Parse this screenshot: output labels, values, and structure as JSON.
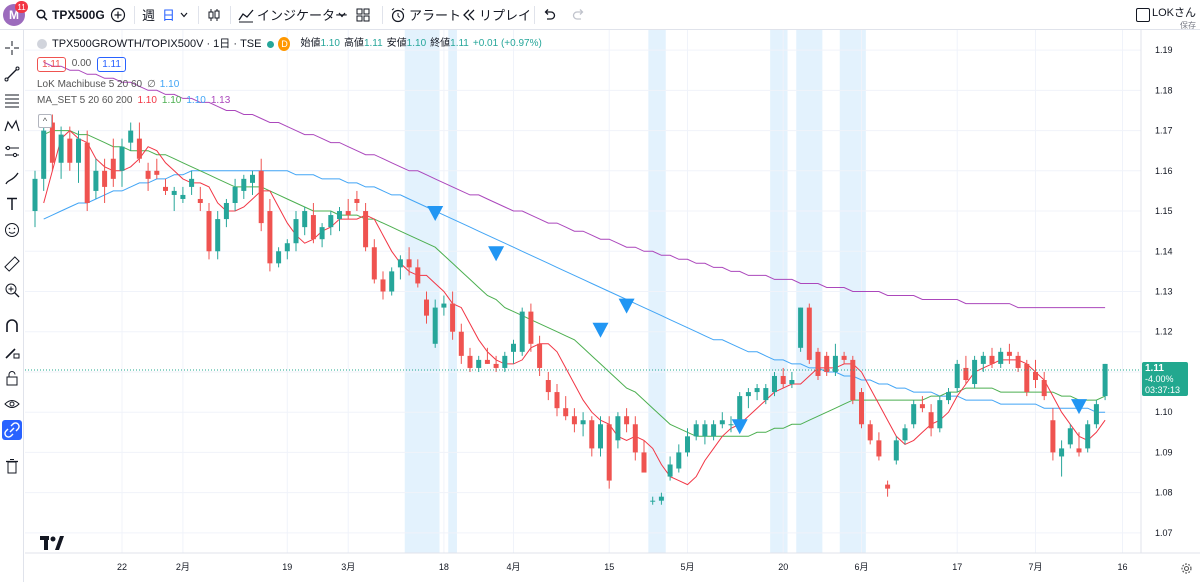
{
  "header": {
    "avatar_letter": "M",
    "avatar_badge": "11",
    "symbol": "TPX500G",
    "interval_week": "週",
    "interval_day": "日",
    "indicators_label": "インジケーター",
    "alert_label": "アラート",
    "replay_label": "リプレイ",
    "user_name": "LOKさん",
    "user_saved": "保存"
  },
  "legend": {
    "instrument": "TPX500GROWTH/TOPIX500V · 1日 · TSE",
    "badge_d": "D",
    "open_label": "始値",
    "open": "1.10",
    "high_label": "高値",
    "high": "1.11",
    "low_label": "安値",
    "low": "1.10",
    "close_label": "終値",
    "close": "1.11",
    "change": "+0.01 (+0.97%)",
    "bid": "1.11",
    "spread": "0.00",
    "ask": "1.11",
    "indicator1_name": "LoK Machibuse 5 20 60",
    "indicator1_sym": "∅",
    "indicator1_val": "1.10",
    "indicator2_name": "MA_SET 5 20 60 200",
    "indicator2_vals": [
      "1.10",
      "1.10",
      "1.10",
      "1.13"
    ],
    "collapse": "^"
  },
  "price_axis": {
    "ticks": [
      "1.19",
      "1.18",
      "1.17",
      "1.16",
      "1.15",
      "1.14",
      "1.13",
      "1.12",
      "1.11",
      "1.10",
      "1.09",
      "1.08",
      "1.07"
    ]
  },
  "time_axis": {
    "ticks": [
      "22",
      "2月",
      "19",
      "3月",
      "18",
      "4月",
      "15",
      "5月",
      "20",
      "6月",
      "17",
      "7月",
      "16"
    ]
  },
  "last_price": {
    "price": "1.11",
    "change": "-4.00%",
    "countdown": "03:37:13"
  },
  "colors": {
    "up": "#26a69a",
    "down": "#ef5350",
    "ma5": "#f23645",
    "ma20": "#4caf50",
    "ma60": "#42a5f5",
    "ma200": "#ab47bc",
    "highlight": "#e3f2fd",
    "signal": "#2196f3"
  },
  "chart_data": {
    "type": "candlestick",
    "y_range": [
      1.065,
      1.195
    ],
    "candles": [
      [
        1.15,
        1.16,
        1.146,
        1.158
      ],
      [
        1.158,
        1.172,
        1.155,
        1.17
      ],
      [
        1.172,
        1.174,
        1.16,
        1.162
      ],
      [
        1.162,
        1.171,
        1.158,
        1.169
      ],
      [
        1.168,
        1.171,
        1.16,
        1.162
      ],
      [
        1.162,
        1.17,
        1.157,
        1.168
      ],
      [
        1.167,
        1.17,
        1.15,
        1.152
      ],
      [
        1.155,
        1.163,
        1.153,
        1.16
      ],
      [
        1.16,
        1.163,
        1.152,
        1.156
      ],
      [
        1.163,
        1.168,
        1.156,
        1.158
      ],
      [
        1.16,
        1.168,
        1.156,
        1.166
      ],
      [
        1.167,
        1.172,
        1.165,
        1.17
      ],
      [
        1.168,
        1.172,
        1.162,
        1.163
      ],
      [
        1.16,
        1.162,
        1.155,
        1.158
      ],
      [
        1.16,
        1.163,
        1.158,
        1.159
      ],
      [
        1.156,
        1.158,
        1.154,
        1.155
      ],
      [
        1.154,
        1.156,
        1.15,
        1.155
      ],
      [
        1.153,
        1.156,
        1.152,
        1.154
      ],
      [
        1.156,
        1.16,
        1.154,
        1.158
      ],
      [
        1.153,
        1.156,
        1.15,
        1.152
      ],
      [
        1.15,
        1.152,
        1.138,
        1.14
      ],
      [
        1.14,
        1.15,
        1.138,
        1.148
      ],
      [
        1.148,
        1.153,
        1.146,
        1.152
      ],
      [
        1.152,
        1.158,
        1.15,
        1.156
      ],
      [
        1.155,
        1.159,
        1.153,
        1.158
      ],
      [
        1.157,
        1.16,
        1.154,
        1.159
      ],
      [
        1.16,
        1.163,
        1.145,
        1.147
      ],
      [
        1.15,
        1.153,
        1.135,
        1.137
      ],
      [
        1.137,
        1.141,
        1.136,
        1.14
      ],
      [
        1.14,
        1.143,
        1.138,
        1.142
      ],
      [
        1.142,
        1.15,
        1.14,
        1.148
      ],
      [
        1.146,
        1.151,
        1.144,
        1.15
      ],
      [
        1.149,
        1.152,
        1.142,
        1.143
      ],
      [
        1.143,
        1.147,
        1.141,
        1.146
      ],
      [
        1.146,
        1.15,
        1.144,
        1.149
      ],
      [
        1.148,
        1.151,
        1.145,
        1.15
      ],
      [
        1.15,
        1.153,
        1.148,
        1.149
      ],
      [
        1.153,
        1.155,
        1.15,
        1.152
      ],
      [
        1.15,
        1.152,
        1.14,
        1.141
      ],
      [
        1.141,
        1.143,
        1.132,
        1.133
      ],
      [
        1.133,
        1.135,
        1.128,
        1.13
      ],
      [
        1.13,
        1.136,
        1.129,
        1.135
      ],
      [
        1.136,
        1.139,
        1.133,
        1.138
      ],
      [
        1.138,
        1.141,
        1.134,
        1.136
      ],
      [
        1.136,
        1.138,
        1.131,
        1.132
      ],
      [
        1.128,
        1.13,
        1.122,
        1.124
      ],
      [
        1.117,
        1.128,
        1.116,
        1.126
      ],
      [
        1.126,
        1.129,
        1.124,
        1.127
      ],
      [
        1.127,
        1.13,
        1.118,
        1.12
      ],
      [
        1.12,
        1.122,
        1.112,
        1.114
      ],
      [
        1.114,
        1.116,
        1.11,
        1.111
      ],
      [
        1.111,
        1.114,
        1.11,
        1.113
      ],
      [
        1.113,
        1.116,
        1.112,
        1.112
      ],
      [
        1.112,
        1.114,
        1.11,
        1.111
      ],
      [
        1.111,
        1.115,
        1.11,
        1.114
      ],
      [
        1.115,
        1.118,
        1.112,
        1.117
      ],
      [
        1.115,
        1.126,
        1.114,
        1.125
      ],
      [
        1.125,
        1.127,
        1.115,
        1.117
      ],
      [
        1.117,
        1.119,
        1.109,
        1.111
      ],
      [
        1.108,
        1.11,
        1.103,
        1.105
      ],
      [
        1.105,
        1.107,
        1.099,
        1.101
      ],
      [
        1.101,
        1.104,
        1.098,
        1.099
      ],
      [
        1.099,
        1.101,
        1.095,
        1.097
      ],
      [
        1.097,
        1.1,
        1.094,
        1.098
      ],
      [
        1.098,
        1.099,
        1.089,
        1.091
      ],
      [
        1.091,
        1.099,
        1.089,
        1.097
      ],
      [
        1.097,
        1.099,
        1.081,
        1.083
      ],
      [
        1.093,
        1.1,
        1.091,
        1.099
      ],
      [
        1.099,
        1.101,
        1.095,
        1.097
      ],
      [
        1.097,
        1.099,
        1.088,
        1.09
      ],
      [
        1.09,
        1.093,
        1.085,
        1.085
      ],
      [
        1.078,
        1.079,
        1.077,
        1.078
      ],
      [
        1.078,
        1.08,
        1.077,
        1.079
      ],
      [
        1.084,
        1.089,
        1.083,
        1.087
      ],
      [
        1.086,
        1.092,
        1.085,
        1.09
      ],
      [
        1.09,
        1.096,
        1.089,
        1.094
      ],
      [
        1.094,
        1.098,
        1.093,
        1.097
      ],
      [
        1.094,
        1.098,
        1.092,
        1.097
      ],
      [
        1.094,
        1.098,
        1.093,
        1.097
      ],
      [
        1.097,
        1.1,
        1.096,
        1.098
      ],
      [
        1.097,
        1.099,
        1.095,
        1.097
      ],
      [
        1.098,
        1.105,
        1.097,
        1.104
      ],
      [
        1.104,
        1.106,
        1.101,
        1.105
      ],
      [
        1.105,
        1.107,
        1.103,
        1.106
      ],
      [
        1.103,
        1.107,
        1.102,
        1.106
      ],
      [
        1.105,
        1.11,
        1.104,
        1.109
      ],
      [
        1.109,
        1.111,
        1.106,
        1.107
      ],
      [
        1.107,
        1.11,
        1.106,
        1.108
      ],
      [
        1.116,
        1.126,
        1.115,
        1.126
      ],
      [
        1.126,
        1.127,
        1.112,
        1.113
      ],
      [
        1.115,
        1.116,
        1.108,
        1.109
      ],
      [
        1.114,
        1.115,
        1.109,
        1.11
      ],
      [
        1.11,
        1.117,
        1.109,
        1.114
      ],
      [
        1.114,
        1.115,
        1.112,
        1.113
      ],
      [
        1.113,
        1.114,
        1.102,
        1.103
      ],
      [
        1.105,
        1.106,
        1.096,
        1.097
      ],
      [
        1.097,
        1.098,
        1.092,
        1.093
      ],
      [
        1.093,
        1.095,
        1.088,
        1.089
      ],
      [
        1.082,
        1.083,
        1.079,
        1.081
      ],
      [
        1.088,
        1.094,
        1.087,
        1.093
      ],
      [
        1.093,
        1.097,
        1.092,
        1.096
      ],
      [
        1.097,
        1.103,
        1.096,
        1.102
      ],
      [
        1.102,
        1.104,
        1.1,
        1.101
      ],
      [
        1.1,
        1.102,
        1.094,
        1.096
      ],
      [
        1.096,
        1.104,
        1.095,
        1.103
      ],
      [
        1.103,
        1.106,
        1.102,
        1.105
      ],
      [
        1.106,
        1.113,
        1.105,
        1.112
      ],
      [
        1.111,
        1.114,
        1.107,
        1.108
      ],
      [
        1.107,
        1.114,
        1.106,
        1.113
      ],
      [
        1.112,
        1.115,
        1.11,
        1.114
      ],
      [
        1.114,
        1.116,
        1.111,
        1.112
      ],
      [
        1.112,
        1.116,
        1.111,
        1.115
      ],
      [
        1.115,
        1.117,
        1.112,
        1.114
      ],
      [
        1.114,
        1.115,
        1.11,
        1.111
      ],
      [
        1.112,
        1.113,
        1.104,
        1.105
      ],
      [
        1.11,
        1.113,
        1.106,
        1.108
      ],
      [
        1.108,
        1.11,
        1.103,
        1.104
      ],
      [
        1.098,
        1.101,
        1.088,
        1.09
      ],
      [
        1.089,
        1.093,
        1.084,
        1.091
      ],
      [
        1.092,
        1.097,
        1.091,
        1.096
      ],
      [
        1.091,
        1.095,
        1.089,
        1.09
      ],
      [
        1.091,
        1.098,
        1.09,
        1.097
      ],
      [
        1.097,
        1.103,
        1.096,
        1.102
      ],
      [
        1.104,
        1.112,
        1.103,
        1.112
      ]
    ],
    "ma5": [
      1.152,
      1.16,
      1.168,
      1.17,
      1.168,
      1.167,
      1.163,
      1.161,
      1.16,
      1.16,
      1.161,
      1.163,
      1.166,
      1.165,
      1.162,
      1.16,
      1.158,
      1.157,
      1.157,
      1.156,
      1.152,
      1.15,
      1.15,
      1.151,
      1.153,
      1.155,
      1.155,
      1.151,
      1.147,
      1.144,
      1.142,
      1.143,
      1.145,
      1.146,
      1.148,
      1.148,
      1.148,
      1.149,
      1.148,
      1.144,
      1.14,
      1.137,
      1.135,
      1.134,
      1.134,
      1.132,
      1.13,
      1.127,
      1.126,
      1.122,
      1.118,
      1.115,
      1.113,
      1.112,
      1.112,
      1.113,
      1.116,
      1.117,
      1.117,
      1.115,
      1.111,
      1.107,
      1.103,
      1.1,
      1.098,
      1.097,
      1.094,
      1.093,
      1.094,
      1.093,
      1.091,
      1.087,
      1.084,
      1.083,
      1.082,
      1.084,
      1.088,
      1.091,
      1.094,
      1.096,
      1.097,
      1.099,
      1.101,
      1.103,
      1.105,
      1.106,
      1.107,
      1.107,
      1.109,
      1.111,
      1.111,
      1.111,
      1.112,
      1.112,
      1.11,
      1.106,
      1.102,
      1.098,
      1.094,
      1.092,
      1.093,
      1.095,
      1.097,
      1.098,
      1.1,
      1.104,
      1.107,
      1.11,
      1.111,
      1.112,
      1.113,
      1.113,
      1.113,
      1.112,
      1.11,
      1.108,
      1.104,
      1.1,
      1.097,
      1.094,
      1.093,
      1.095,
      1.098
    ],
    "ma20": [
      1.169,
      1.17,
      1.17,
      1.17,
      1.169,
      1.169,
      1.168,
      1.167,
      1.166,
      1.166,
      1.165,
      1.165,
      1.165,
      1.164,
      1.164,
      1.163,
      1.162,
      1.161,
      1.16,
      1.159,
      1.158,
      1.157,
      1.156,
      1.156,
      1.156,
      1.156,
      1.155,
      1.154,
      1.153,
      1.152,
      1.151,
      1.15,
      1.15,
      1.15,
      1.149,
      1.149,
      1.149,
      1.148,
      1.148,
      1.147,
      1.146,
      1.145,
      1.144,
      1.143,
      1.142,
      1.141,
      1.139,
      1.137,
      1.135,
      1.133,
      1.131,
      1.129,
      1.128,
      1.126,
      1.125,
      1.124,
      1.123,
      1.122,
      1.121,
      1.12,
      1.119,
      1.118,
      1.116,
      1.114,
      1.112,
      1.11,
      1.108,
      1.106,
      1.105,
      1.103,
      1.101,
      1.099,
      1.097,
      1.096,
      1.095,
      1.094,
      1.094,
      1.094,
      1.094,
      1.094,
      1.094,
      1.094,
      1.095,
      1.095,
      1.096,
      1.096,
      1.097,
      1.097,
      1.098,
      1.099,
      1.1,
      1.101,
      1.102,
      1.103,
      1.103,
      1.103,
      1.103,
      1.103,
      1.103,
      1.103,
      1.103,
      1.103,
      1.104,
      1.104,
      1.105,
      1.105,
      1.106,
      1.106,
      1.106,
      1.106,
      1.105,
      1.105,
      1.105,
      1.105,
      1.105,
      1.105,
      1.105,
      1.104,
      1.104,
      1.103,
      1.103,
      1.103,
      1.104
    ],
    "ma60": [
      1.148,
      1.149,
      1.15,
      1.151,
      1.152,
      1.152,
      1.153,
      1.154,
      1.155,
      1.155,
      1.156,
      1.157,
      1.157,
      1.158,
      1.158,
      1.159,
      1.159,
      1.16,
      1.16,
      1.16,
      1.16,
      1.16,
      1.16,
      1.16,
      1.16,
      1.16,
      1.16,
      1.16,
      1.16,
      1.159,
      1.159,
      1.159,
      1.158,
      1.158,
      1.158,
      1.157,
      1.157,
      1.156,
      1.156,
      1.155,
      1.154,
      1.154,
      1.153,
      1.152,
      1.151,
      1.15,
      1.149,
      1.148,
      1.147,
      1.146,
      1.145,
      1.144,
      1.143,
      1.142,
      1.141,
      1.14,
      1.139,
      1.138,
      1.137,
      1.136,
      1.135,
      1.134,
      1.133,
      1.132,
      1.131,
      1.13,
      1.129,
      1.128,
      1.127,
      1.126,
      1.125,
      1.124,
      1.123,
      1.122,
      1.121,
      1.12,
      1.119,
      1.118,
      1.118,
      1.117,
      1.116,
      1.115,
      1.115,
      1.114,
      1.113,
      1.113,
      1.112,
      1.112,
      1.111,
      1.111,
      1.11,
      1.11,
      1.109,
      1.109,
      1.108,
      1.108,
      1.107,
      1.107,
      1.106,
      1.106,
      1.105,
      1.105,
      1.105,
      1.104,
      1.104,
      1.104,
      1.103,
      1.103,
      1.103,
      1.103,
      1.102,
      1.102,
      1.102,
      1.102,
      1.102,
      1.101,
      1.101,
      1.101,
      1.101,
      1.101,
      1.101,
      1.1,
      1.1
    ],
    "ma200": [
      1.187,
      1.186,
      1.186,
      1.185,
      1.185,
      1.184,
      1.184,
      1.183,
      1.183,
      1.182,
      1.182,
      1.181,
      1.18,
      1.18,
      1.179,
      1.179,
      1.178,
      1.178,
      1.177,
      1.177,
      1.176,
      1.175,
      1.175,
      1.174,
      1.174,
      1.173,
      1.172,
      1.172,
      1.171,
      1.17,
      1.169,
      1.169,
      1.168,
      1.167,
      1.167,
      1.166,
      1.165,
      1.164,
      1.164,
      1.163,
      1.162,
      1.161,
      1.16,
      1.16,
      1.159,
      1.158,
      1.157,
      1.156,
      1.155,
      1.154,
      1.154,
      1.153,
      1.152,
      1.151,
      1.15,
      1.15,
      1.149,
      1.148,
      1.147,
      1.147,
      1.146,
      1.145,
      1.145,
      1.144,
      1.143,
      1.143,
      1.142,
      1.141,
      1.141,
      1.14,
      1.14,
      1.139,
      1.139,
      1.138,
      1.138,
      1.137,
      1.137,
      1.136,
      1.136,
      1.135,
      1.135,
      1.134,
      1.134,
      1.134,
      1.133,
      1.133,
      1.133,
      1.132,
      1.132,
      1.132,
      1.131,
      1.131,
      1.131,
      1.13,
      1.13,
      1.13,
      1.13,
      1.129,
      1.129,
      1.129,
      1.129,
      1.128,
      1.128,
      1.128,
      1.128,
      1.128,
      1.127,
      1.127,
      1.127,
      1.127,
      1.127,
      1.127,
      1.126,
      1.126,
      1.126,
      1.126,
      1.126,
      1.126,
      1.126,
      1.126,
      1.126,
      1.126,
      1.126
    ],
    "highlight_ranges": [
      [
        43,
        46
      ],
      [
        48,
        48
      ],
      [
        71,
        72
      ],
      [
        85,
        86
      ],
      [
        88,
        90
      ],
      [
        93,
        95
      ]
    ],
    "signal_points": [
      [
        46,
        1.149
      ],
      [
        53,
        1.139
      ],
      [
        65,
        1.12
      ],
      [
        68,
        1.126
      ],
      [
        81,
        1.096
      ],
      [
        120,
        1.101
      ]
    ],
    "last_price_line": 1.1105,
    "grid": true
  }
}
